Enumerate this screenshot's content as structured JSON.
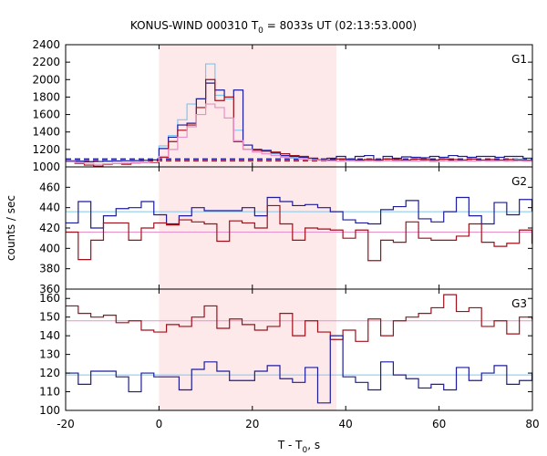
{
  "chart_data": {
    "type": "line",
    "title": "KONUS-WIND 000310 T",
    "title_sub": "0",
    "title_rest": " = 8033s UT (02:13:53.000)",
    "xlabel": "T - T",
    "xlabel_sub": "0",
    "xlabel_rest": ", s",
    "ylabel": "counts / sec",
    "xlim": [
      -20,
      80
    ],
    "xticks": [
      "-20",
      "0",
      "20",
      "40",
      "60",
      "80"
    ],
    "highlight": {
      "x0": 0,
      "x1": 38,
      "color": "#fde8ea"
    },
    "colors": {
      "dark_red": "#a0101a",
      "dark_blue": "#1c1c9c",
      "light_blue": "#7ec8ee",
      "pink": "#e890c8"
    },
    "panels": [
      {
        "label": "G1",
        "ylim": [
          1000,
          2400
        ],
        "yticks": [
          "1000",
          "1200",
          "1400",
          "1600",
          "1800",
          "2000",
          "2200",
          "2400"
        ],
        "bg_red": 1070,
        "bg_blue": 1090,
        "series": [
          {
            "name": "G1 light blue",
            "color": "light_blue",
            "x0": -20,
            "dt": 2,
            "values": [
              1070,
              1065,
              1060,
              1062,
              1065,
              1068,
              1070,
              1072,
              1075,
              1080,
              1240,
              1360,
              1540,
              1720,
              1780,
              2180,
              1820,
              1780,
              1420,
              1250,
              1200,
              1180,
              1150,
              1120,
              1110,
              1090,
              1080,
              1075,
              1070,
              1065,
              1070,
              1065,
              1075,
              1080,
              1070,
              1075,
              1065,
              1070,
              1075,
              1060,
              1075,
              1065,
              1075,
              1070,
              1075,
              1070,
              1075,
              1080,
              1090,
              1080
            ]
          },
          {
            "name": "G1 dark blue",
            "color": "dark_blue",
            "x0": -20,
            "dt": 2,
            "values": [
              1070,
              1065,
              1060,
              1062,
              1065,
              1068,
              1070,
              1072,
              1075,
              1080,
              1210,
              1340,
              1480,
              1500,
              1780,
              1960,
              1880,
              1800,
              1880,
              1250,
              1200,
              1190,
              1160,
              1130,
              1120,
              1110,
              1100,
              1080,
              1100,
              1120,
              1090,
              1120,
              1130,
              1080,
              1120,
              1100,
              1115,
              1110,
              1105,
              1120,
              1110,
              1130,
              1120,
              1110,
              1120,
              1120,
              1110,
              1120,
              1120,
              1100
            ]
          },
          {
            "name": "G1 dark red",
            "color": "dark_red",
            "x0": -20,
            "dt": 2,
            "values": [
              1060,
              1040,
              1020,
              1010,
              1030,
              1040,
              1030,
              1045,
              1050,
              1050,
              1110,
              1290,
              1420,
              1480,
              1680,
              2000,
              1760,
              1800,
              1290,
              1200,
              1190,
              1180,
              1170,
              1150,
              1130,
              1120,
              1100,
              1080,
              1080,
              1090,
              1075,
              1080,
              1085,
              1080,
              1090,
              1085,
              1080,
              1090,
              1085,
              1080,
              1090,
              1085,
              1080,
              1090,
              1080,
              1085,
              1080,
              1085,
              1080,
              1075
            ]
          },
          {
            "name": "G1 pink",
            "color": "pink",
            "x0": -20,
            "dt": 2,
            "values": [
              1060,
              1050,
              1040,
              1030,
              1035,
              1040,
              1045,
              1050,
              1050,
              1055,
              1120,
              1200,
              1340,
              1460,
              1600,
              1720,
              1680,
              1560,
              1300,
              1200,
              1170,
              1150,
              1130,
              1110,
              1100,
              1090,
              1080,
              1075,
              1070,
              1065,
              1070,
              1065,
              1070,
              1065,
              1070,
              1065,
              1070,
              1065,
              1070,
              1065,
              1070,
              1065,
              1070,
              1065,
              1070,
              1065,
              1070,
              1065,
              1070,
              1065
            ]
          }
        ]
      },
      {
        "label": "G2",
        "ylim": [
          360,
          480
        ],
        "yticks": [
          "360",
          "380",
          "400",
          "420",
          "440",
          "460"
        ],
        "bg_red": 416,
        "bg_blue": 436,
        "series": [
          {
            "name": "G2 dark blue",
            "color": "dark_blue",
            "x0": -20,
            "dt": 2.7,
            "values": [
              425,
              446,
              420,
              432,
              439,
              440,
              446,
              433,
              424,
              432,
              440,
              437,
              437,
              437,
              440,
              432,
              450,
              446,
              442,
              443,
              440,
              436,
              428,
              425,
              424,
              438,
              441,
              447,
              429,
              426,
              436,
              450,
              432,
              424,
              445,
              433,
              448,
              437,
              442,
              448
            ]
          },
          {
            "name": "G2 dark red",
            "color": "dark_red",
            "x0": -20,
            "dt": 2.7,
            "values": [
              416,
              389,
              408,
              425,
              425,
              408,
              420,
              425,
              423,
              428,
              426,
              424,
              407,
              427,
              425,
              420,
              442,
              424,
              408,
              420,
              419,
              418,
              410,
              418,
              388,
              408,
              406,
              426,
              410,
              408,
              408,
              412,
              424,
              406,
              402,
              405,
              418,
              405,
              416,
              418
            ]
          }
        ]
      },
      {
        "label": "G3",
        "ylim": [
          100,
          165
        ],
        "yticks": [
          "100",
          "110",
          "120",
          "130",
          "140",
          "150",
          "160"
        ],
        "bg_red": 148,
        "bg_blue": 119,
        "series": [
          {
            "name": "G3 dark red",
            "color": "dark_red",
            "x0": -20,
            "dt": 2.7,
            "values": [
              156,
              152,
              150,
              151,
              147,
              148,
              143,
              142,
              146,
              145,
              150,
              156,
              144,
              149,
              146,
              143,
              145,
              152,
              140,
              148,
              142,
              138,
              143,
              137,
              149,
              140,
              148,
              150,
              152,
              155,
              162,
              153,
              155,
              145,
              148,
              141,
              150,
              149,
              152,
              151,
              155,
              148,
              150,
              145,
              150,
              153,
              145,
              151,
              148,
              160
            ]
          },
          {
            "name": "G3 dark blue",
            "color": "dark_blue",
            "x0": -20,
            "dt": 2.7,
            "values": [
              120,
              114,
              121,
              121,
              118,
              110,
              120,
              118,
              118,
              111,
              122,
              126,
              121,
              116,
              116,
              121,
              124,
              117,
              115,
              123,
              104,
              140,
              118,
              115,
              111,
              126,
              119,
              117,
              112,
              114,
              111,
              123,
              116,
              120,
              124,
              114,
              116,
              120,
              110,
              123
            ]
          }
        ]
      }
    ]
  }
}
